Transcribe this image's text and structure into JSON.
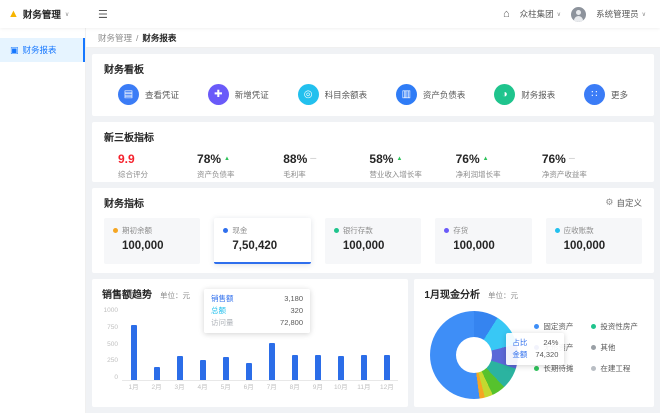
{
  "app": {
    "title": "财务管理",
    "logo_icon": "▲"
  },
  "header": {
    "collapse_icon": "☰",
    "home_icon": "⌂",
    "company": "众柱集团",
    "user": "系统管理员",
    "caret": "∨"
  },
  "sidebar": {
    "items": [
      {
        "icon": "▣",
        "label": "财务报表"
      }
    ]
  },
  "breadcrumb": {
    "parent": "财务管理",
    "separator": "/",
    "current": "财务报表"
  },
  "board": {
    "title": "财务看板",
    "actions": [
      {
        "label": "查看凭证",
        "icon": "▤",
        "color": "#3b7cf6"
      },
      {
        "label": "新增凭证",
        "icon": "✚",
        "color": "#6a5af9"
      },
      {
        "label": "科目余额表",
        "icon": "◎",
        "color": "#22c0ee"
      },
      {
        "label": "资产负债表",
        "icon": "▥",
        "color": "#2f7cf6"
      },
      {
        "label": "财务报表",
        "icon": "◑",
        "color": "#1fc48d"
      },
      {
        "label": "更多",
        "icon": "∷",
        "color": "#3b7cf6"
      }
    ]
  },
  "metrics": {
    "title": "新三板指标",
    "items": [
      {
        "value": "9.9",
        "label": "综合评分",
        "value_color": "#f5222d",
        "trend_icon": "",
        "trend_color": ""
      },
      {
        "value": "78%",
        "label": "资产负债率",
        "value_color": "#262626",
        "trend_icon": "▲",
        "trend_color": "#2fc25b"
      },
      {
        "value": "88%",
        "label": "毛利率",
        "value_color": "#262626",
        "trend_icon": "—",
        "trend_color": "#bfbfbf"
      },
      {
        "value": "58%",
        "label": "营业收入增长率",
        "value_color": "#262626",
        "trend_icon": "▲",
        "trend_color": "#2fc25b"
      },
      {
        "value": "76%",
        "label": "净利润增长率",
        "value_color": "#262626",
        "trend_icon": "▲",
        "trend_color": "#2fc25b"
      },
      {
        "value": "76%",
        "label": "净资产收益率",
        "value_color": "#262626",
        "trend_icon": "—",
        "trend_color": "#bfbfbf"
      }
    ]
  },
  "indicators": {
    "title": "财务指标",
    "gear_icon": "⚙",
    "customize": "自定义",
    "cards": [
      {
        "label": "期初余额",
        "value": "100,000",
        "dot": "#f5a623"
      },
      {
        "label": "现金",
        "value": "7,50,420",
        "dot": "#2f6fed"
      },
      {
        "label": "银行存款",
        "value": "100,000",
        "dot": "#1fc48d"
      },
      {
        "label": "存货",
        "value": "100,000",
        "dot": "#6a5af9"
      },
      {
        "label": "应收账款",
        "value": "100,000",
        "dot": "#22c0ee"
      }
    ]
  },
  "sales_chart": {
    "title": "销售额趋势",
    "unit_label": "单位：元",
    "tooltip": [
      {
        "label": "销售额",
        "value": "3,180",
        "color": "#2f6fed"
      },
      {
        "label": "总额",
        "value": "320",
        "color": "#22c0ee"
      },
      {
        "label": "访问量",
        "value": "72,800",
        "color": "#b0b4ba"
      }
    ]
  },
  "cash_chart": {
    "title": "1月现金分析",
    "unit_label": "单位：元",
    "tooltip": [
      {
        "label": "占比",
        "value": "24%"
      },
      {
        "label": "金额",
        "value": "74,320"
      }
    ],
    "legend": [
      {
        "label": "固定资产",
        "color": "#3e8ef7"
      },
      {
        "label": "无形资产",
        "color": "#5b68d8"
      },
      {
        "label": "长期待摊",
        "color": "#2fc25b"
      },
      {
        "label": "投资性房产",
        "color": "#1fc48d"
      },
      {
        "label": "其他",
        "color": "#9aa0a6"
      },
      {
        "label": "在建工程",
        "color": "#b9bec4"
      }
    ]
  },
  "chart_data": [
    {
      "type": "bar",
      "title": "销售额趋势",
      "unit": "元",
      "categories": [
        "1月",
        "2月",
        "3月",
        "4月",
        "5月",
        "6月",
        "7月",
        "8月",
        "9月",
        "10月",
        "11月",
        "12月"
      ],
      "values": [
        750,
        180,
        330,
        270,
        310,
        230,
        500,
        340,
        345,
        330,
        335,
        340
      ],
      "xlabel": "",
      "ylabel": "",
      "ylim": [
        0,
        1000
      ],
      "yticks": [
        0,
        250,
        500,
        750,
        1000
      ],
      "grid": false,
      "bar_color": "#2b6de8"
    },
    {
      "type": "pie",
      "title": "1月现金分析",
      "unit": "元",
      "legend_position": "right",
      "segments": [
        {
          "name": "无形资产",
          "pct": 9,
          "color": "#3584f0"
        },
        {
          "name": "投资性房产",
          "pct": 12,
          "color": "#38c8f5"
        },
        {
          "name": "其他",
          "pct": 9,
          "color": "#5b68d8"
        },
        {
          "name": "在建工程",
          "pct": 8,
          "color": "#2bb3a0"
        },
        {
          "name": "长期待摊",
          "pct": 5,
          "color": "#56c22d"
        },
        {
          "name": "",
          "pct": 3,
          "color": "#c3d930"
        },
        {
          "name": "",
          "pct": 2,
          "color": "#f5a623"
        },
        {
          "name": "固定资产",
          "pct": 52,
          "color": "#3e8ef7"
        }
      ],
      "tooltip": {
        "占比": "24%",
        "金额": "74,320"
      }
    }
  ]
}
